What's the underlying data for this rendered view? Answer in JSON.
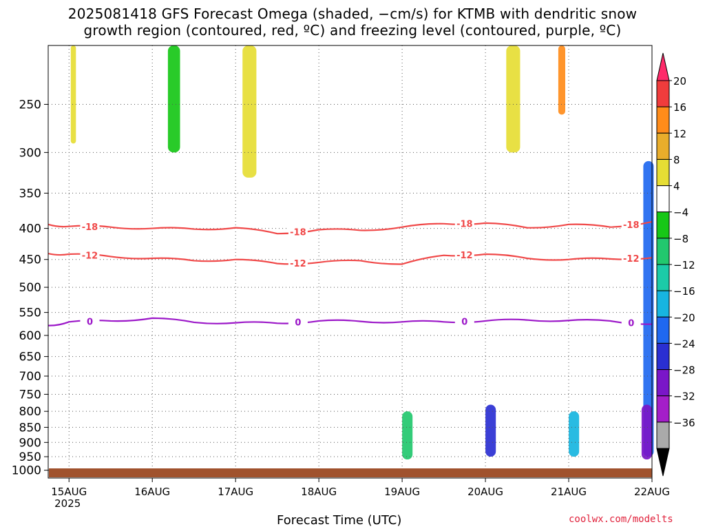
{
  "title": {
    "line1": "2025081418 GFS Forecast Omega (shaded, −cm/s) for KTMB with dendritic snow",
    "line2": "growth region (contoured, red, ºC) and freezing level (contoured, purple, ºC)"
  },
  "xlabel": "Forecast Time (UTC)",
  "credit": "coolwx.com/modelts",
  "chart_data": {
    "type": "heatmap",
    "title": "2025081418 GFS Forecast Omega (shaded, −cm/s) for KTMB with dendritic snow growth region (contoured, red, ºC) and freezing level (contoured, purple, ºC)",
    "xlabel": "Forecast Time (UTC)",
    "ylabel": "",
    "x_range_hours": [
      -6,
      168
    ],
    "x_ticks": [
      {
        "h": 0,
        "label": "15AUG",
        "sub": "2025"
      },
      {
        "h": 24,
        "label": "16AUG"
      },
      {
        "h": 48,
        "label": "17AUG"
      },
      {
        "h": 72,
        "label": "18AUG"
      },
      {
        "h": 96,
        "label": "19AUG"
      },
      {
        "h": 120,
        "label": "20AUG"
      },
      {
        "h": 144,
        "label": "21AUG"
      },
      {
        "h": 168,
        "label": "22AUG"
      }
    ],
    "y_scale": "log-pressure",
    "y_range_hPa": [
      1030,
      200
    ],
    "y_ticks": [
      250,
      300,
      350,
      400,
      450,
      500,
      550,
      600,
      650,
      700,
      750,
      800,
      850,
      900,
      950,
      1000
    ],
    "grid": true,
    "colorbar": {
      "labels": [
        "20",
        "16",
        "12",
        "8",
        "4",
        "−4",
        "−8",
        "−12",
        "−16",
        "−20",
        "−24",
        "−28",
        "−32",
        "−36"
      ],
      "colors": [
        "#ff2a6a",
        "#f03c3c",
        "#ff8c1a",
        "#e9ad2b",
        "#e6dd34",
        "#ffffff",
        "#17c717",
        "#22c86e",
        "#1ccba8",
        "#17b5e0",
        "#1f68f0",
        "#2a2fd2",
        "#7a16c8",
        "#a41ec9",
        "#aaaaaa",
        "#000000"
      ]
    },
    "shading_regions": [
      {
        "name": "Aug 15 00Z early column",
        "x_hours": [
          0.5,
          2
        ],
        "p_top": 200,
        "p_bot": 290,
        "value": 4
      },
      {
        "name": "Aug 16 12Z upper",
        "x_hours": [
          28.5,
          32
        ],
        "p_top": 200,
        "p_bot": 300,
        "value": -8
      },
      {
        "name": "Aug 17 upper",
        "x_hours": [
          50,
          54
        ],
        "p_top": 200,
        "p_bot": 330,
        "value": 6
      },
      {
        "name": "Aug 20 06Z upper",
        "x_hours": [
          126,
          130
        ],
        "p_top": 200,
        "p_bot": 300,
        "value": 4
      },
      {
        "name": "Aug 21 upper",
        "x_hours": [
          141,
          143
        ],
        "p_top": 200,
        "p_bot": 260,
        "value": 14
      },
      {
        "name": "Aug 22 00Z deep column",
        "x_hours": [
          165.5,
          168.5
        ],
        "p_top": 310,
        "p_bot": 950,
        "value": -24
      },
      {
        "name": "Aug 19 12Z low level",
        "x_hours": [
          120,
          123
        ],
        "p_top": 780,
        "p_bot": 950,
        "value": -28
      },
      {
        "name": "Aug 21 12Z low level",
        "x_hours": [
          144,
          147
        ],
        "p_top": 800,
        "p_bot": 950,
        "value": -20
      },
      {
        "name": "Aug 22 00Z low level",
        "x_hours": [
          165,
          168
        ],
        "p_top": 780,
        "p_bot": 960,
        "value": -32
      },
      {
        "name": "Aug 18 18Z low level",
        "x_hours": [
          96,
          99
        ],
        "p_top": 800,
        "p_bot": 960,
        "value": -12
      }
    ],
    "series": [
      {
        "name": "-18",
        "color": "#f04848",
        "x": [
          -6,
          0,
          12,
          24,
          36,
          48,
          60,
          72,
          84,
          96,
          108,
          120,
          132,
          144,
          156,
          168
        ],
        "y": [
          394,
          397,
          398,
          400,
          401,
          399,
          408,
          402,
          403,
          398,
          393,
          392,
          399,
          394,
          398,
          390
        ]
      },
      {
        "name": "-12",
        "color": "#f04848",
        "x": [
          -6,
          0,
          12,
          24,
          36,
          48,
          60,
          72,
          84,
          96,
          108,
          120,
          132,
          144,
          156,
          168
        ],
        "y": [
          440,
          441,
          445,
          448,
          452,
          450,
          457,
          455,
          452,
          458,
          443,
          441,
          448,
          450,
          449,
          447
        ]
      },
      {
        "name": "0",
        "color": "#9b16c8",
        "x": [
          -6,
          0,
          12,
          24,
          36,
          48,
          60,
          72,
          84,
          96,
          108,
          120,
          132,
          144,
          156,
          168
        ],
        "y": [
          578,
          570,
          568,
          562,
          571,
          572,
          573,
          568,
          569,
          570,
          570,
          568,
          566,
          567,
          568,
          575
        ]
      }
    ]
  }
}
